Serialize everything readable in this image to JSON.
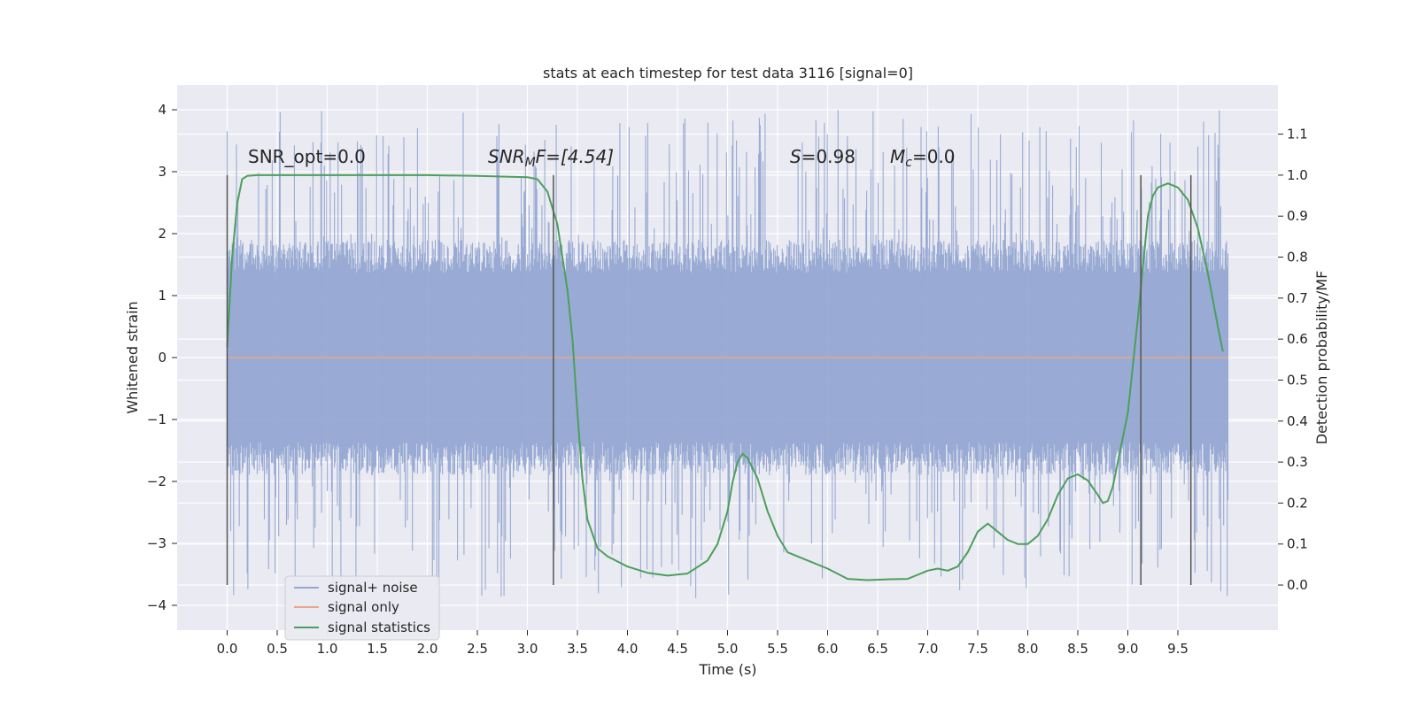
{
  "chart_data": {
    "type": "line",
    "title": "stats at each timestep for test data 3116 [signal=0]",
    "xlabel": "Time (s)",
    "ylabel": "Whitened strain",
    "y2label": "Detection probability/MF",
    "xlim": [
      -0.5,
      10.5
    ],
    "ylim": [
      -4.4,
      4.4
    ],
    "y2lim": [
      -0.11,
      1.22
    ],
    "xticks": [
      "0.0",
      "0.5",
      "1.0",
      "1.5",
      "2.0",
      "2.5",
      "3.0",
      "3.5",
      "4.0",
      "4.5",
      "5.0",
      "5.5",
      "6.0",
      "6.5",
      "7.0",
      "7.5",
      "8.0",
      "8.5",
      "9.0",
      "9.5"
    ],
    "yticks": [
      "4",
      "3",
      "2",
      "1",
      "0",
      "−1",
      "−2",
      "−3",
      "−4"
    ],
    "y2ticks": [
      "1.1",
      "1.0",
      "0.9",
      "0.8",
      "0.7",
      "0.6",
      "0.5",
      "0.4",
      "0.3",
      "0.2",
      "0.1",
      "0.0"
    ],
    "grid": true,
    "legend": {
      "placement": "lower-left"
    },
    "annotations": {
      "snr_opt": "SNR_opt=0.0",
      "snr_mf_main": "SNR",
      "snr_mf_sub": "M",
      "snr_mf_rest": "F=[4.54]",
      "s_label": "S",
      "s_value": "=0.98",
      "mc_main": "M",
      "mc_sub": "c",
      "mc_value": "=0.0"
    },
    "vlines_x": [
      0.0,
      3.26,
      9.13,
      9.63
    ],
    "series": [
      {
        "name": "signal+ noise",
        "color": "#95a8d2",
        "x_range": [
          0.0,
          10.0
        ],
        "typical_range": [
          -1.9,
          1.9
        ],
        "peak_range": [
          -3.9,
          4.0
        ]
      },
      {
        "name": "signal only",
        "color": "#e8a58a",
        "x": [
          0.0,
          10.0
        ],
        "y": [
          0.0,
          0.0
        ]
      },
      {
        "name": "signal statistics",
        "color": "#4c9f5c",
        "axis": "right",
        "x": [
          0.0,
          0.05,
          0.1,
          0.15,
          0.2,
          0.3,
          0.5,
          1.0,
          1.5,
          2.0,
          2.5,
          3.0,
          3.1,
          3.2,
          3.3,
          3.4,
          3.45,
          3.5,
          3.55,
          3.6,
          3.7,
          3.8,
          4.0,
          4.2,
          4.4,
          4.6,
          4.8,
          4.9,
          5.0,
          5.05,
          5.1,
          5.15,
          5.2,
          5.3,
          5.4,
          5.5,
          5.6,
          5.8,
          6.0,
          6.2,
          6.4,
          6.6,
          6.8,
          6.9,
          7.0,
          7.1,
          7.2,
          7.3,
          7.4,
          7.5,
          7.6,
          7.7,
          7.8,
          7.9,
          8.0,
          8.1,
          8.2,
          8.3,
          8.4,
          8.5,
          8.6,
          8.7,
          8.75,
          8.8,
          8.85,
          8.9,
          9.0,
          9.1,
          9.2,
          9.25,
          9.3,
          9.4,
          9.5,
          9.6,
          9.7,
          9.8,
          9.9,
          9.95
        ],
        "y": [
          0.58,
          0.8,
          0.93,
          0.99,
          0.998,
          1.0,
          1.0,
          1.0,
          1.0,
          1.0,
          0.998,
          0.995,
          0.99,
          0.96,
          0.88,
          0.72,
          0.6,
          0.42,
          0.26,
          0.16,
          0.09,
          0.07,
          0.045,
          0.03,
          0.023,
          0.028,
          0.06,
          0.1,
          0.18,
          0.25,
          0.3,
          0.32,
          0.31,
          0.26,
          0.18,
          0.12,
          0.08,
          0.06,
          0.04,
          0.015,
          0.012,
          0.014,
          0.015,
          0.025,
          0.035,
          0.04,
          0.035,
          0.045,
          0.08,
          0.13,
          0.15,
          0.13,
          0.11,
          0.1,
          0.1,
          0.12,
          0.16,
          0.22,
          0.26,
          0.27,
          0.255,
          0.22,
          0.2,
          0.205,
          0.24,
          0.3,
          0.42,
          0.65,
          0.9,
          0.95,
          0.97,
          0.98,
          0.97,
          0.94,
          0.87,
          0.76,
          0.63,
          0.57
        ]
      }
    ]
  }
}
